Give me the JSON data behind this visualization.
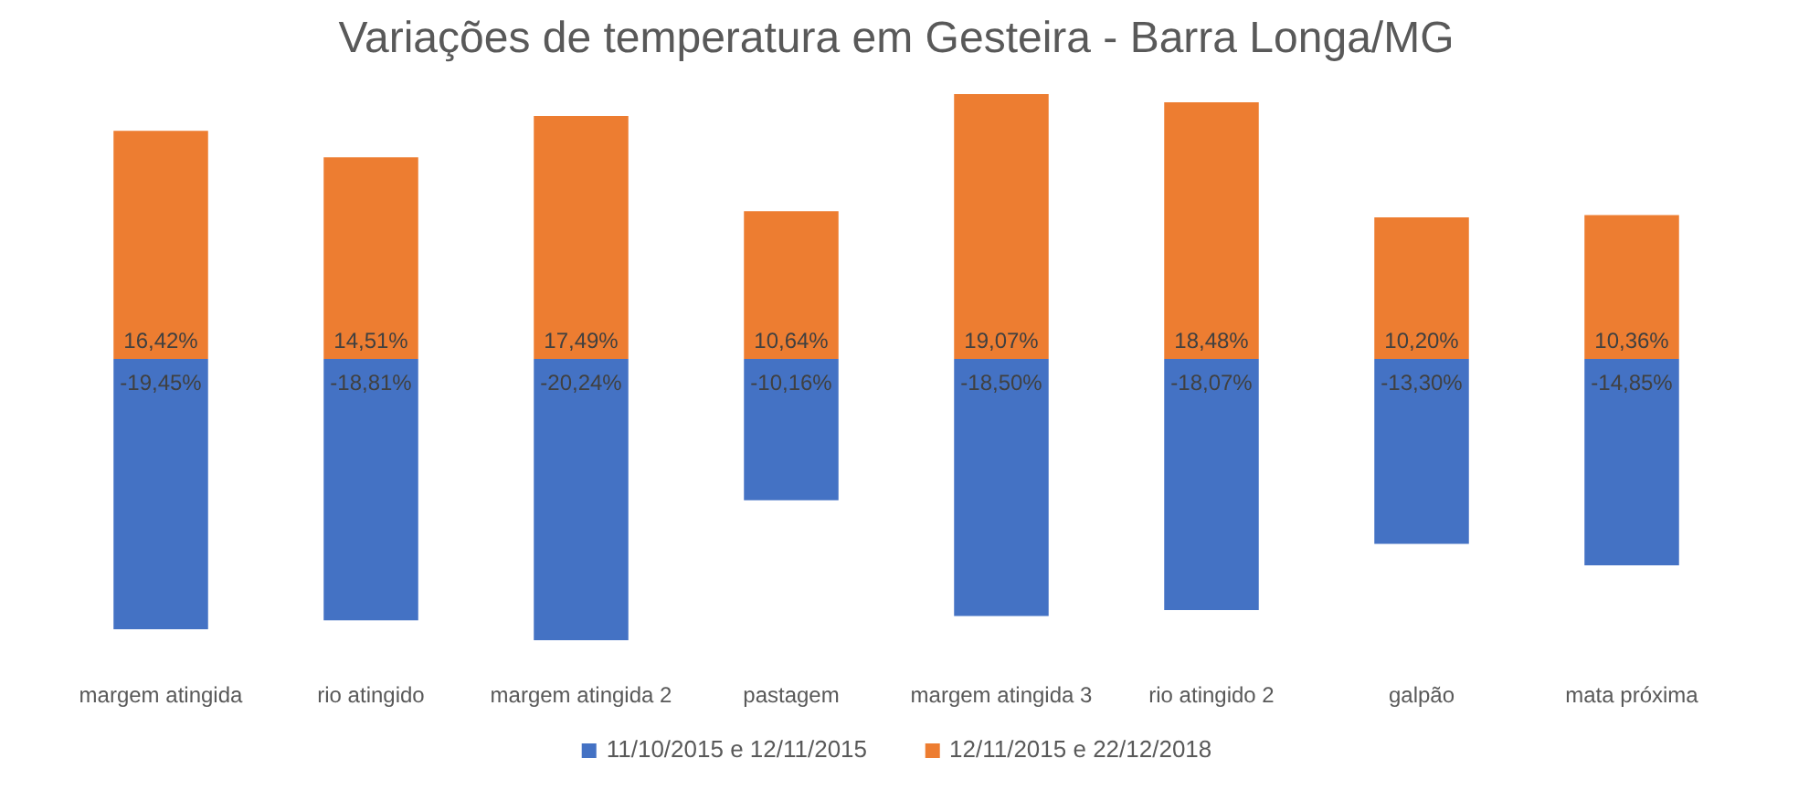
{
  "chart_data": {
    "type": "bar",
    "title": "Variações de temperatura em Gesteira - Barra Longa/MG",
    "categories": [
      "margem atingida",
      "rio atingido",
      "margem atingida 2",
      "pastagem",
      "margem atingida 3",
      "rio atingido 2",
      "galpão",
      "mata próxima"
    ],
    "stacked": true,
    "legend": "bottom",
    "tick_labels": "x",
    "series": [
      {
        "name": "11/10/2015 e 12/11/2015",
        "color": "#4472c4",
        "values": [
          -19.45,
          -18.81,
          -20.24,
          -10.16,
          -18.5,
          -18.07,
          -13.3,
          -14.85
        ],
        "value_labels": [
          "-19,45%",
          "-18,81%",
          "-20,24%",
          "-10,16%",
          "-18,50%",
          "-18,07%",
          "-13,30%",
          "-14,85%"
        ]
      },
      {
        "name": "12/11/2015 e 22/12/2018",
        "color": "#ed7d31",
        "values": [
          16.42,
          14.51,
          17.49,
          10.64,
          19.07,
          18.48,
          10.2,
          10.36
        ],
        "value_labels": [
          "16,42%",
          "14,51%",
          "17,49%",
          "10,64%",
          "19,07%",
          "18,48%",
          "10,20%",
          "10,36%"
        ]
      }
    ]
  }
}
